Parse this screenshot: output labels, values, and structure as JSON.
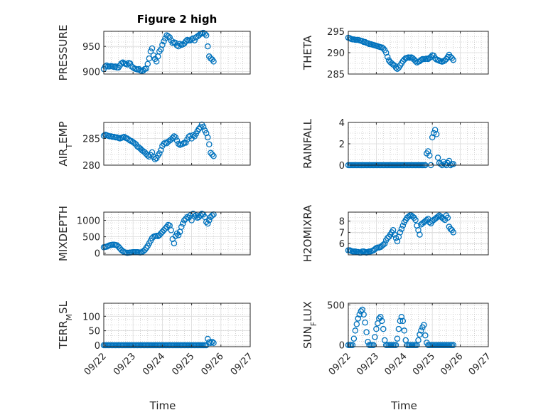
{
  "figure": {
    "title": "Figure 2 high",
    "marker_color": "#0072BD",
    "axis_color": "#262626",
    "grid_color": "#B4B4B4"
  },
  "chart_data": [
    {
      "type": "scatter",
      "title": "Figure 2 high",
      "ylabel": "PRESSURE",
      "xlabel": "",
      "xlim": [
        0,
        5
      ],
      "ylim": [
        895,
        980
      ],
      "yticks": [
        900,
        950
      ],
      "xticklabels": [],
      "grid": true,
      "x": [
        0,
        0.05,
        0.1,
        0.15,
        0.2,
        0.25,
        0.3,
        0.35,
        0.4,
        0.45,
        0.5,
        0.55,
        0.6,
        0.65,
        0.7,
        0.75,
        0.8,
        0.85,
        0.9,
        0.95,
        1.0,
        1.05,
        1.1,
        1.15,
        1.2,
        1.25,
        1.3,
        1.35,
        1.4,
        1.45,
        1.5,
        1.55,
        1.6,
        1.65,
        1.7,
        1.75,
        1.8,
        1.85,
        1.9,
        1.95,
        2.0,
        2.05,
        2.1,
        2.15,
        2.2,
        2.25,
        2.3,
        2.35,
        2.4,
        2.45,
        2.5,
        2.55,
        2.6,
        2.65,
        2.7,
        2.75,
        2.8,
        2.85,
        2.9,
        2.95,
        3.0,
        3.05,
        3.1,
        3.15,
        3.2,
        3.25,
        3.3,
        3.35,
        3.4,
        3.45,
        3.5,
        3.55,
        3.6,
        3.65,
        3.7,
        3.75
      ],
      "y": [
        905,
        910,
        912,
        910,
        910,
        911,
        910,
        909,
        910,
        908,
        908,
        912,
        916,
        918,
        916,
        915,
        914,
        917,
        916,
        910,
        908,
        906,
        905,
        904,
        905,
        902,
        901,
        902,
        905,
        906,
        915,
        926,
        940,
        946,
        932,
        925,
        920,
        930,
        940,
        944,
        953,
        960,
        966,
        972,
        970,
        968,
        962,
        957,
        958,
        957,
        952,
        950,
        955,
        953,
        954,
        956,
        960,
        963,
        962,
        962,
        964,
        966,
        962,
        968,
        970,
        972,
        975,
        976,
        977,
        975,
        972,
        950,
        930,
        926,
        924,
        920
      ]
    },
    {
      "type": "scatter",
      "title": "",
      "ylabel": "THETA",
      "xlabel": "",
      "xlim": [
        0,
        5
      ],
      "ylim": [
        285,
        295
      ],
      "yticks": [
        285,
        290,
        295
      ],
      "xticklabels": [],
      "grid": true,
      "x": [
        0,
        0.05,
        0.1,
        0.15,
        0.2,
        0.25,
        0.3,
        0.35,
        0.4,
        0.45,
        0.5,
        0.55,
        0.6,
        0.65,
        0.7,
        0.75,
        0.8,
        0.85,
        0.9,
        0.95,
        1.0,
        1.05,
        1.1,
        1.15,
        1.2,
        1.25,
        1.3,
        1.35,
        1.4,
        1.45,
        1.5,
        1.55,
        1.6,
        1.65,
        1.7,
        1.75,
        1.8,
        1.85,
        1.9,
        1.95,
        2.0,
        2.05,
        2.1,
        2.15,
        2.2,
        2.25,
        2.3,
        2.35,
        2.4,
        2.45,
        2.5,
        2.55,
        2.6,
        2.65,
        2.7,
        2.75,
        2.8,
        2.85,
        2.9,
        2.95,
        3.0,
        3.05,
        3.1,
        3.15,
        3.2,
        3.25,
        3.3,
        3.35,
        3.4,
        3.45,
        3.5,
        3.55,
        3.6,
        3.65,
        3.7,
        3.75
      ],
      "y": [
        293.5,
        293.4,
        293.2,
        293.1,
        293.1,
        293.0,
        293.0,
        293.0,
        292.9,
        292.8,
        292.7,
        292.5,
        292.5,
        292.3,
        292.2,
        292.0,
        292.0,
        291.9,
        291.8,
        291.7,
        291.6,
        291.5,
        291.4,
        291.3,
        291.2,
        291.0,
        290.6,
        290.0,
        289.0,
        288.2,
        287.8,
        287.5,
        287.2,
        287.0,
        286.5,
        286.2,
        286.5,
        287.0,
        287.5,
        288.0,
        288.4,
        288.7,
        288.8,
        288.9,
        288.8,
        288.9,
        288.7,
        288.4,
        288.0,
        287.7,
        287.9,
        288.0,
        288.3,
        288.5,
        288.5,
        288.5,
        288.6,
        288.5,
        288.8,
        289.0,
        289.4,
        289.3,
        288.7,
        288.4,
        288.3,
        288.1,
        288.0,
        287.9,
        288.0,
        288.2,
        288.5,
        289.0,
        289.5,
        289.0,
        288.7,
        288.3
      ]
    },
    {
      "type": "scatter",
      "title": "",
      "ylabel": "AIR_TEMP",
      "xlabel": "",
      "xlim": [
        0,
        5
      ],
      "ylim": [
        280,
        288
      ],
      "yticks": [
        280,
        285
      ],
      "xticklabels": [],
      "grid": true,
      "x": [
        0,
        0.05,
        0.1,
        0.15,
        0.2,
        0.25,
        0.3,
        0.35,
        0.4,
        0.45,
        0.5,
        0.55,
        0.6,
        0.65,
        0.7,
        0.75,
        0.8,
        0.85,
        0.9,
        0.95,
        1.0,
        1.05,
        1.1,
        1.15,
        1.2,
        1.25,
        1.3,
        1.35,
        1.4,
        1.45,
        1.5,
        1.55,
        1.6,
        1.65,
        1.7,
        1.75,
        1.8,
        1.85,
        1.9,
        1.95,
        2.0,
        2.05,
        2.1,
        2.15,
        2.2,
        2.25,
        2.3,
        2.35,
        2.4,
        2.45,
        2.5,
        2.55,
        2.6,
        2.65,
        2.7,
        2.75,
        2.8,
        2.85,
        2.9,
        2.95,
        3.0,
        3.05,
        3.1,
        3.15,
        3.2,
        3.25,
        3.3,
        3.35,
        3.4,
        3.45,
        3.5,
        3.55,
        3.6,
        3.65,
        3.7,
        3.75
      ],
      "y": [
        285.5,
        285.7,
        285.6,
        285.5,
        285.4,
        285.4,
        285.3,
        285.3,
        285.2,
        285.2,
        285.1,
        285.0,
        285.1,
        285.2,
        285.3,
        285.1,
        285.0,
        284.8,
        284.6,
        284.5,
        284.3,
        284.1,
        283.9,
        283.5,
        283.3,
        283.1,
        282.8,
        282.6,
        282.4,
        282.1,
        281.8,
        281.6,
        281.9,
        282.4,
        281.5,
        281.1,
        281.3,
        281.8,
        282.2,
        282.8,
        283.6,
        284.0,
        284.2,
        284.1,
        284.4,
        284.6,
        284.8,
        285.1,
        285.4,
        285.2,
        284.6,
        284.0,
        283.8,
        283.9,
        284.0,
        284.2,
        284.2,
        284.8,
        285.3,
        285.5,
        285.0,
        285.6,
        285.4,
        285.9,
        286.4,
        286.8,
        287.1,
        287.6,
        287.2,
        286.5,
        286.0,
        285.2,
        283.9,
        282.3,
        282.0,
        281.7
      ]
    },
    {
      "type": "scatter",
      "title": "",
      "ylabel": "RAINFALL",
      "xlabel": "",
      "xlim": [
        0,
        5
      ],
      "ylim": [
        0,
        4
      ],
      "yticks": [
        0,
        2,
        4
      ],
      "xticklabels": [],
      "grid": true,
      "x": [
        0,
        0.05,
        0.1,
        0.15,
        0.2,
        0.25,
        0.3,
        0.35,
        0.4,
        0.45,
        0.5,
        0.55,
        0.6,
        0.65,
        0.7,
        0.75,
        0.8,
        0.85,
        0.9,
        0.95,
        1.0,
        1.05,
        1.1,
        1.15,
        1.2,
        1.25,
        1.3,
        1.35,
        1.4,
        1.45,
        1.5,
        1.55,
        1.6,
        1.65,
        1.7,
        1.75,
        1.8,
        1.85,
        1.9,
        1.95,
        2.0,
        2.05,
        2.1,
        2.15,
        2.2,
        2.25,
        2.3,
        2.35,
        2.4,
        2.45,
        2.5,
        2.55,
        2.6,
        2.65,
        2.7,
        2.75,
        2.8,
        2.85,
        2.9,
        2.95,
        3.0,
        3.05,
        3.1,
        3.15,
        3.2,
        3.25,
        3.3,
        3.35,
        3.4,
        3.45,
        3.5,
        3.55,
        3.6,
        3.65,
        3.7,
        3.75
      ],
      "y": [
        0,
        0,
        0,
        0,
        0,
        0,
        0,
        0,
        0,
        0,
        0,
        0,
        0,
        0,
        0,
        0,
        0,
        0,
        0,
        0,
        0,
        0,
        0,
        0,
        0,
        0,
        0,
        0,
        0,
        0,
        0,
        0,
        0,
        0,
        0,
        0,
        0,
        0,
        0,
        0,
        0,
        0,
        0,
        0,
        0,
        0,
        0,
        0,
        0,
        0,
        0,
        0,
        0,
        0,
        0,
        0,
        1.1,
        1.3,
        0.9,
        0,
        2.6,
        3.0,
        3.3,
        2.9,
        0.7,
        0.2,
        0.1,
        0,
        0.3,
        0.1,
        0,
        0.2,
        0.4,
        0,
        0.1,
        0.1
      ]
    },
    {
      "type": "scatter",
      "title": "",
      "ylabel": "MIXDEPTH",
      "xlabel": "",
      "xlim": [
        0,
        5
      ],
      "ylim": [
        -50,
        1250
      ],
      "yticks": [
        0,
        500,
        1000
      ],
      "xticklabels": [],
      "grid": true,
      "x": [
        0,
        0.05,
        0.1,
        0.15,
        0.2,
        0.25,
        0.3,
        0.35,
        0.4,
        0.45,
        0.5,
        0.55,
        0.6,
        0.65,
        0.7,
        0.75,
        0.8,
        0.85,
        0.9,
        0.95,
        1.0,
        1.05,
        1.1,
        1.15,
        1.2,
        1.25,
        1.3,
        1.35,
        1.4,
        1.45,
        1.5,
        1.55,
        1.6,
        1.65,
        1.7,
        1.75,
        1.8,
        1.85,
        1.9,
        1.95,
        2.0,
        2.05,
        2.1,
        2.15,
        2.2,
        2.25,
        2.3,
        2.35,
        2.4,
        2.45,
        2.5,
        2.55,
        2.6,
        2.65,
        2.7,
        2.75,
        2.8,
        2.85,
        2.9,
        2.95,
        3.0,
        3.05,
        3.1,
        3.15,
        3.2,
        3.25,
        3.3,
        3.35,
        3.4,
        3.45,
        3.5,
        3.55,
        3.6,
        3.65,
        3.7,
        3.75
      ],
      "y": [
        180,
        190,
        200,
        220,
        240,
        250,
        260,
        260,
        250,
        240,
        200,
        150,
        100,
        60,
        30,
        20,
        10,
        15,
        20,
        25,
        30,
        30,
        30,
        30,
        25,
        20,
        30,
        60,
        100,
        160,
        220,
        300,
        380,
        460,
        500,
        520,
        530,
        520,
        550,
        600,
        650,
        700,
        750,
        800,
        860,
        840,
        700,
        430,
        300,
        520,
        600,
        550,
        650,
        800,
        900,
        1000,
        1050,
        1100,
        1080,
        1150,
        1000,
        1200,
        1120,
        1150,
        1080,
        1100,
        1150,
        1200,
        1180,
        1100,
        950,
        900,
        1000,
        1100,
        1150,
        1180
      ]
    },
    {
      "type": "scatter",
      "title": "",
      "ylabel": "H2OMIXRA",
      "xlabel": "",
      "xlim": [
        0,
        5
      ],
      "ylim": [
        5,
        8.8
      ],
      "yticks": [
        6,
        7,
        8
      ],
      "xticklabels": [],
      "grid": true,
      "x": [
        0,
        0.05,
        0.1,
        0.15,
        0.2,
        0.25,
        0.3,
        0.35,
        0.4,
        0.45,
        0.5,
        0.55,
        0.6,
        0.65,
        0.7,
        0.75,
        0.8,
        0.85,
        0.9,
        0.95,
        1.0,
        1.05,
        1.1,
        1.15,
        1.2,
        1.25,
        1.3,
        1.35,
        1.4,
        1.45,
        1.5,
        1.55,
        1.6,
        1.65,
        1.7,
        1.75,
        1.8,
        1.85,
        1.9,
        1.95,
        2.0,
        2.05,
        2.1,
        2.15,
        2.2,
        2.25,
        2.3,
        2.35,
        2.4,
        2.45,
        2.5,
        2.55,
        2.6,
        2.65,
        2.7,
        2.75,
        2.8,
        2.85,
        2.9,
        2.95,
        3.0,
        3.05,
        3.1,
        3.15,
        3.2,
        3.25,
        3.3,
        3.35,
        3.4,
        3.45,
        3.5,
        3.55,
        3.6,
        3.65,
        3.7,
        3.75
      ],
      "y": [
        5.4,
        5.4,
        5.35,
        5.3,
        5.3,
        5.3,
        5.25,
        5.25,
        5.2,
        5.2,
        5.3,
        5.3,
        5.25,
        5.2,
        5.25,
        5.3,
        5.3,
        5.35,
        5.4,
        5.5,
        5.6,
        5.65,
        5.65,
        5.7,
        5.8,
        5.9,
        6.0,
        6.3,
        6.5,
        6.6,
        6.8,
        7.0,
        7.2,
        6.8,
        6.5,
        6.2,
        6.6,
        7.0,
        7.3,
        7.6,
        7.9,
        8.1,
        8.3,
        8.4,
        8.5,
        8.5,
        8.4,
        8.3,
        8.1,
        7.6,
        7.2,
        6.8,
        7.7,
        7.8,
        7.9,
        8.0,
        8.1,
        8.2,
        7.9,
        7.8,
        8.0,
        8.1,
        8.2,
        8.3,
        8.4,
        8.5,
        8.4,
        8.3,
        8.2,
        8.1,
        8.5,
        8.3,
        7.5,
        7.3,
        7.2,
        7.0
      ]
    },
    {
      "type": "scatter",
      "title": "",
      "ylabel": "TERR_MSL",
      "xlabel": "Time",
      "xlim": [
        0,
        5
      ],
      "ylim": [
        -5,
        145
      ],
      "yticks": [
        0,
        50,
        100
      ],
      "xticklabels": [
        "09/22",
        "09/23",
        "09/24",
        "09/25",
        "09/26",
        "09/27"
      ],
      "grid": true,
      "x": [
        0,
        0.05,
        0.1,
        0.15,
        0.2,
        0.25,
        0.3,
        0.35,
        0.4,
        0.45,
        0.5,
        0.55,
        0.6,
        0.65,
        0.7,
        0.75,
        0.8,
        0.85,
        0.9,
        0.95,
        1.0,
        1.05,
        1.1,
        1.15,
        1.2,
        1.25,
        1.3,
        1.35,
        1.4,
        1.45,
        1.5,
        1.55,
        1.6,
        1.65,
        1.7,
        1.75,
        1.8,
        1.85,
        1.9,
        1.95,
        2.0,
        2.05,
        2.1,
        2.15,
        2.2,
        2.25,
        2.3,
        2.35,
        2.4,
        2.45,
        2.5,
        2.55,
        2.6,
        2.65,
        2.7,
        2.75,
        2.8,
        2.85,
        2.9,
        2.95,
        3.0,
        3.05,
        3.1,
        3.15,
        3.2,
        3.25,
        3.3,
        3.35,
        3.4,
        3.45,
        3.5,
        3.55,
        3.6,
        3.65,
        3.7,
        3.75
      ],
      "y": [
        0,
        0,
        0,
        0,
        0,
        0,
        0,
        0,
        0,
        0,
        0,
        0,
        0,
        0,
        0,
        0,
        0,
        0,
        0,
        0,
        0,
        0,
        0,
        0,
        0,
        0,
        0,
        0,
        0,
        0,
        0,
        0,
        0,
        0,
        0,
        0,
        0,
        0,
        0,
        0,
        0,
        0,
        0,
        0,
        0,
        0,
        0,
        0,
        0,
        0,
        0,
        0,
        0,
        0,
        0,
        0,
        0,
        0,
        0,
        0,
        0,
        0,
        0,
        0,
        0,
        0,
        0,
        0,
        0,
        0,
        0,
        22,
        10,
        8,
        12,
        8
      ]
    },
    {
      "type": "scatter",
      "title": "",
      "ylabel": "SUN_FLUX",
      "xlabel": "Time",
      "xlim": [
        0,
        5
      ],
      "ylim": [
        -20,
        520
      ],
      "yticks": [
        0,
        500
      ],
      "xticklabels": [
        "09/22",
        "09/23",
        "09/24",
        "09/25",
        "09/26",
        "09/27"
      ],
      "grid": true,
      "x": [
        0,
        0.05,
        0.1,
        0.15,
        0.2,
        0.25,
        0.3,
        0.35,
        0.4,
        0.45,
        0.5,
        0.55,
        0.6,
        0.65,
        0.7,
        0.75,
        0.8,
        0.85,
        0.9,
        0.95,
        1.0,
        1.05,
        1.1,
        1.15,
        1.2,
        1.25,
        1.3,
        1.35,
        1.4,
        1.45,
        1.5,
        1.55,
        1.6,
        1.65,
        1.7,
        1.75,
        1.8,
        1.85,
        1.9,
        1.95,
        2.0,
        2.05,
        2.1,
        2.15,
        2.2,
        2.25,
        2.3,
        2.35,
        2.4,
        2.45,
        2.5,
        2.55,
        2.6,
        2.65,
        2.7,
        2.75,
        2.8,
        2.85,
        2.9,
        2.95,
        3.0,
        3.05,
        3.1,
        3.15,
        3.2,
        3.25,
        3.3,
        3.35,
        3.4,
        3.45,
        3.5,
        3.55,
        3.6,
        3.65,
        3.7,
        3.75
      ],
      "y": [
        0,
        0,
        0,
        0,
        80,
        180,
        260,
        330,
        380,
        420,
        440,
        380,
        280,
        160,
        40,
        0,
        0,
        0,
        0,
        100,
        200,
        270,
        330,
        350,
        300,
        200,
        60,
        0,
        0,
        0,
        0,
        0,
        0,
        0,
        0,
        80,
        200,
        300,
        350,
        300,
        180,
        60,
        0,
        0,
        0,
        0,
        0,
        0,
        0,
        0,
        60,
        130,
        180,
        220,
        250,
        120,
        30,
        0,
        0,
        0,
        0,
        0,
        0,
        0,
        0,
        0,
        0,
        0,
        0,
        0,
        0,
        0,
        0,
        0,
        0,
        0
      ]
    }
  ]
}
